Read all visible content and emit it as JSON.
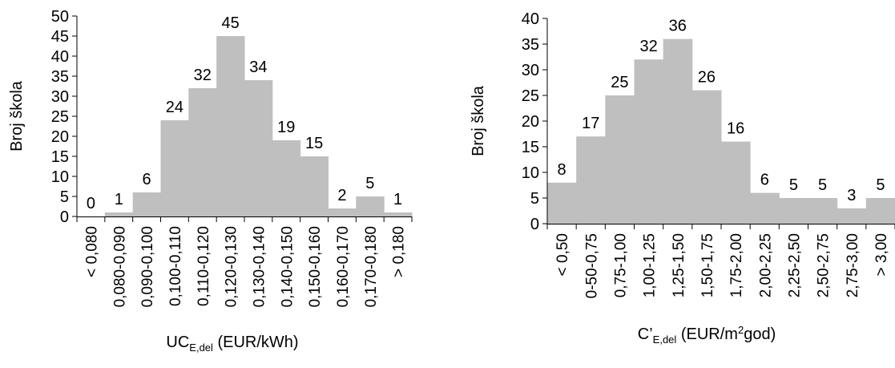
{
  "colors": {
    "bar": "#bfbfbf",
    "axis": "#000000",
    "text": "#000000"
  },
  "chart_data": [
    {
      "type": "bar",
      "categories": [
        "< 0,080",
        "0,080-0,090",
        "0,090-0,100",
        "0,100-0,110",
        "0,110-0,120",
        "0,120-0,130",
        "0,130-0,140",
        "0,140-0,150",
        "0,150-0,160",
        "0,160-0,170",
        "0,170-0,180",
        "> 0,180"
      ],
      "values": [
        0,
        1,
        6,
        24,
        32,
        45,
        34,
        19,
        15,
        2,
        5,
        1
      ],
      "data_labels": [
        "0",
        "1",
        "6",
        "24",
        "32",
        "45",
        "34",
        "19",
        "15",
        "2",
        "5",
        "1"
      ],
      "ylabel": "Broj škola",
      "xlabel": {
        "main": "UC",
        "sub": "E,del",
        "tail": " (EUR/kWh)"
      },
      "ylim": [
        0,
        50
      ],
      "yticks": [
        0,
        5,
        10,
        15,
        20,
        25,
        30,
        35,
        40,
        45,
        50
      ],
      "grid": false,
      "legend": "none"
    },
    {
      "type": "bar",
      "categories": [
        "< 0,50",
        "0-50-0,75",
        "0,75-1,00",
        "1,00-1,25",
        "1,25-1,50",
        "1,50-1,75",
        "1,75-2,00",
        "2,00-2,25",
        "2,25-2,50",
        "2,50-2,75",
        "2,75-3,00",
        "> 3,00"
      ],
      "values": [
        8,
        17,
        25,
        32,
        36,
        26,
        16,
        6,
        5,
        5,
        3,
        5
      ],
      "data_labels": [
        "8",
        "17",
        "25",
        "32",
        "36",
        "26",
        "16",
        "6",
        "5",
        "5",
        "3",
        "5"
      ],
      "ylabel": "Broj škola",
      "xlabel": {
        "main": "C’",
        "sub": "E,del",
        "tail": " (EUR/m",
        "sup": "2",
        "tail2": "god)"
      },
      "ylim": [
        0,
        40
      ],
      "yticks": [
        0,
        5,
        10,
        15,
        20,
        25,
        30,
        35,
        40
      ],
      "grid": false,
      "legend": "none"
    }
  ]
}
